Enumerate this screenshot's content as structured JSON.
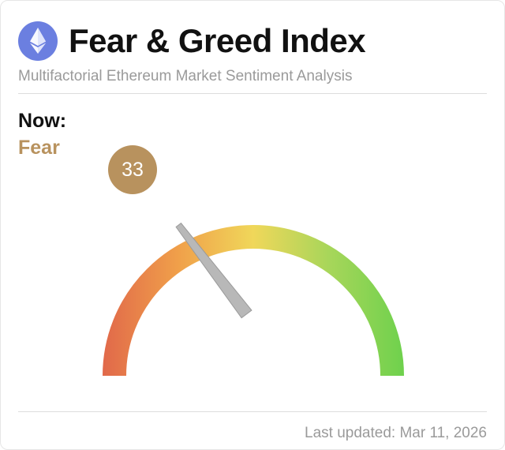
{
  "header": {
    "icon": "ethereum-icon",
    "title": "Fear & Greed Index",
    "subtitle": "Multifactorial Ethereum Market Sentiment Analysis"
  },
  "status": {
    "now_label": "Now:",
    "sentiment": "Fear",
    "score": "33",
    "score_value": 33,
    "score_max": 100,
    "accent_color": "#b8925e"
  },
  "gauge_colors": {
    "extreme_fear": "#e1694a",
    "fear": "#f0a04a",
    "neutral": "#f0d75a",
    "greed": "#a8d65a",
    "extreme_greed": "#6fd14d",
    "needle": "#b8b8b8"
  },
  "footer": {
    "last_updated": "Last updated: Mar 11, 2026"
  }
}
